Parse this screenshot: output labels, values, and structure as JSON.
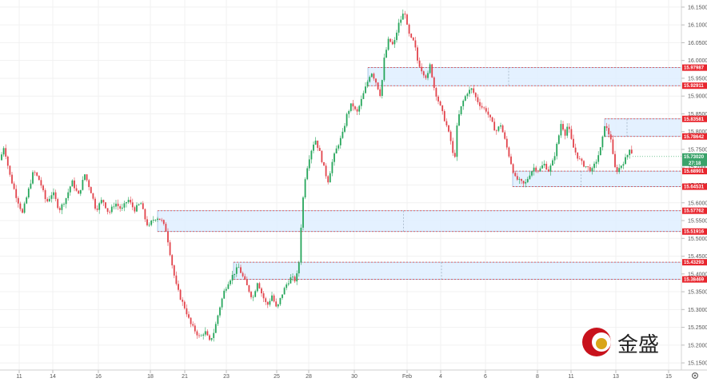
{
  "chart_data": {
    "type": "candlestick",
    "title": "",
    "xlabel": "",
    "ylabel": "",
    "ylim": [
      15.13,
      16.17
    ],
    "y_ticks": [
      "16.15000",
      "16.10000",
      "16.05000",
      "16.00000",
      "15.95000",
      "15.90000",
      "15.85000",
      "15.80000",
      "15.75000",
      "15.70000",
      "15.65000",
      "15.60000",
      "15.55000",
      "15.50000",
      "15.45000",
      "15.40000",
      "15.35000",
      "15.30000",
      "15.25000",
      "15.20000",
      "15.15000"
    ],
    "x_ticks": [
      "11",
      "14",
      "16",
      "18",
      "21",
      "23",
      "25",
      "28",
      "30",
      "Feb",
      "4",
      "6",
      "8",
      "11",
      "13",
      "15"
    ],
    "grid": true,
    "series_points": [
      [
        0,
        15.72
      ],
      [
        5,
        15.76
      ],
      [
        12,
        15.68
      ],
      [
        20,
        15.62
      ],
      [
        28,
        15.57
      ],
      [
        35,
        15.63
      ],
      [
        42,
        15.69
      ],
      [
        50,
        15.66
      ],
      [
        58,
        15.6
      ],
      [
        66,
        15.63
      ],
      [
        74,
        15.58
      ],
      [
        82,
        15.61
      ],
      [
        90,
        15.66
      ],
      [
        98,
        15.62
      ],
      [
        106,
        15.68
      ],
      [
        114,
        15.63
      ],
      [
        120,
        15.58
      ],
      [
        128,
        15.61
      ],
      [
        136,
        15.57
      ],
      [
        144,
        15.6
      ],
      [
        152,
        15.58
      ],
      [
        160,
        15.61
      ],
      [
        168,
        15.58
      ],
      [
        176,
        15.6
      ],
      [
        182,
        15.55
      ],
      [
        186,
        15.53
      ],
      [
        190,
        15.55
      ],
      [
        196,
        15.56
      ],
      [
        202,
        15.55
      ],
      [
        208,
        15.52
      ],
      [
        214,
        15.44
      ],
      [
        220,
        15.37
      ],
      [
        226,
        15.33
      ],
      [
        232,
        15.3
      ],
      [
        238,
        15.26
      ],
      [
        244,
        15.24
      ],
      [
        250,
        15.22
      ],
      [
        256,
        15.24
      ],
      [
        262,
        15.21
      ],
      [
        268,
        15.24
      ],
      [
        274,
        15.3
      ],
      [
        280,
        15.35
      ],
      [
        286,
        15.38
      ],
      [
        292,
        15.4
      ],
      [
        298,
        15.42
      ],
      [
        304,
        15.39
      ],
      [
        310,
        15.36
      ],
      [
        316,
        15.33
      ],
      [
        322,
        15.38
      ],
      [
        328,
        15.34
      ],
      [
        334,
        15.31
      ],
      [
        340,
        15.34
      ],
      [
        346,
        15.3
      ],
      [
        352,
        15.34
      ],
      [
        358,
        15.37
      ],
      [
        364,
        15.39
      ],
      [
        370,
        15.38
      ],
      [
        375,
        15.45
      ],
      [
        377,
        15.57
      ],
      [
        382,
        15.68
      ],
      [
        388,
        15.74
      ],
      [
        394,
        15.78
      ],
      [
        400,
        15.74
      ],
      [
        406,
        15.69
      ],
      [
        410,
        15.66
      ],
      [
        416,
        15.72
      ],
      [
        422,
        15.76
      ],
      [
        428,
        15.79
      ],
      [
        434,
        15.85
      ],
      [
        440,
        15.88
      ],
      [
        446,
        15.85
      ],
      [
        452,
        15.89
      ],
      [
        458,
        15.93
      ],
      [
        464,
        15.97
      ],
      [
        470,
        15.94
      ],
      [
        476,
        15.9
      ],
      [
        480,
        16.0
      ],
      [
        486,
        16.06
      ],
      [
        492,
        16.04
      ],
      [
        498,
        16.1
      ],
      [
        502,
        16.12
      ],
      [
        506,
        16.14
      ],
      [
        510,
        16.08
      ],
      [
        514,
        16.06
      ],
      [
        518,
        16.05
      ],
      [
        522,
        16.0
      ],
      [
        528,
        15.97
      ],
      [
        534,
        15.95
      ],
      [
        538,
        15.99
      ],
      [
        542,
        15.93
      ],
      [
        546,
        15.9
      ],
      [
        552,
        15.86
      ],
      [
        558,
        15.82
      ],
      [
        564,
        15.77
      ],
      [
        568,
        15.71
      ],
      [
        572,
        15.83
      ],
      [
        578,
        15.88
      ],
      [
        584,
        15.91
      ],
      [
        590,
        15.92
      ],
      [
        596,
        15.89
      ],
      [
        602,
        15.87
      ],
      [
        608,
        15.86
      ],
      [
        614,
        15.83
      ],
      [
        620,
        15.8
      ],
      [
        626,
        15.82
      ],
      [
        632,
        15.77
      ],
      [
        638,
        15.72
      ],
      [
        644,
        15.67
      ],
      [
        650,
        15.66
      ],
      [
        656,
        15.65
      ],
      [
        662,
        15.68
      ],
      [
        668,
        15.7
      ],
      [
        674,
        15.69
      ],
      [
        680,
        15.71
      ],
      [
        686,
        15.69
      ],
      [
        692,
        15.72
      ],
      [
        698,
        15.78
      ],
      [
        702,
        15.83
      ],
      [
        706,
        15.79
      ],
      [
        710,
        15.82
      ],
      [
        716,
        15.76
      ],
      [
        722,
        15.73
      ],
      [
        728,
        15.71
      ],
      [
        734,
        15.7
      ],
      [
        740,
        15.69
      ],
      [
        746,
        15.72
      ],
      [
        752,
        15.76
      ],
      [
        756,
        15.82
      ],
      [
        760,
        15.8
      ],
      [
        764,
        15.78
      ],
      [
        768,
        15.7
      ],
      [
        772,
        15.69
      ],
      [
        778,
        15.71
      ],
      [
        784,
        15.73
      ],
      [
        788,
        15.76
      ],
      [
        791,
        15.73
      ]
    ],
    "zones": [
      {
        "top": 15.97987,
        "bottom": 15.92911,
        "top_label": "15.97987",
        "bottom_label": "15.92911"
      },
      {
        "top": 15.83581,
        "bottom": 15.78642,
        "top_label": "15.83581",
        "bottom_label": "15.78642"
      },
      {
        "top": 15.68901,
        "bottom": 15.64531,
        "top_label": "15.68901",
        "bottom_label": "15.64531"
      },
      {
        "top": 15.57762,
        "bottom": 15.51916,
        "top_label": "15.57762",
        "bottom_label": "15.51916"
      },
      {
        "top": 15.43293,
        "bottom": 15.38469,
        "top_label": "15.43293",
        "bottom_label": "15.38469"
      }
    ],
    "current_price": "15.73020",
    "countdown": "27:18"
  },
  "logo": {
    "text": "金盛"
  },
  "ui": {
    "settings_icon": "gear-icon"
  }
}
